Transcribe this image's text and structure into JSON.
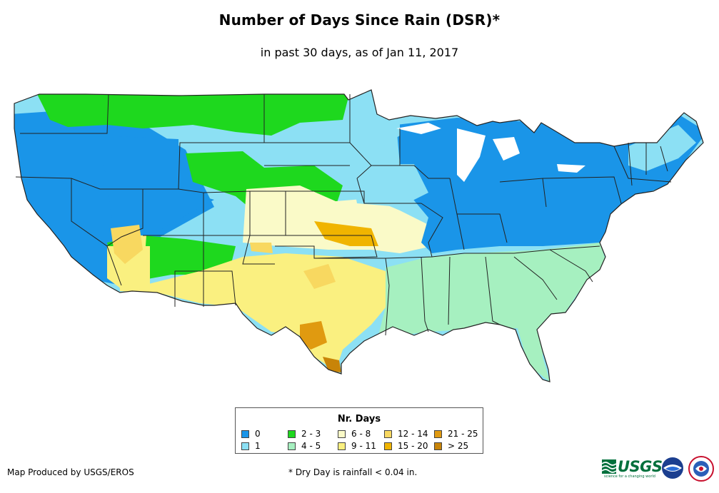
{
  "header": {
    "title": "Number of Days Since Rain (DSR)*",
    "subtitle": "in past 30 days, as of Jan 11, 2017"
  },
  "legend": {
    "title": "Nr. Days",
    "items": [
      {
        "label": "0",
        "color": "#1a95e8"
      },
      {
        "label": "1",
        "color": "#8ce0f4"
      },
      {
        "label": "2 - 3",
        "color": "#1ed81e"
      },
      {
        "label": "4 - 5",
        "color": "#a6f0c0"
      },
      {
        "label": "6 - 8",
        "color": "#fafac8"
      },
      {
        "label": "9 - 11",
        "color": "#faf080"
      },
      {
        "label": "12 - 14",
        "color": "#f8d860"
      },
      {
        "label": "15 - 20",
        "color": "#f0b400"
      },
      {
        "label": "21 - 25",
        "color": "#e09a10"
      },
      {
        "label": "> 25",
        "color": "#c88408"
      }
    ]
  },
  "footer": {
    "producer": "Map Produced by USGS/EROS",
    "note": "* Dry Day is rainfall < 0.04 in."
  },
  "logos": {
    "usgs": "USGS",
    "usgs_tagline": "science for a changing world",
    "noaa": "noaa",
    "nws": "National Weather Service"
  },
  "map": {
    "region": "Contiguous United States",
    "state_borders": true,
    "zones": [
      {
        "name": "northeast-and-great-lakes",
        "days": "0"
      },
      {
        "name": "pacific-west",
        "days": "0"
      },
      {
        "name": "northern-plains",
        "days": "1"
      },
      {
        "name": "northern-rockies",
        "days": "2 - 3"
      },
      {
        "name": "four-corners",
        "days": "2 - 3"
      },
      {
        "name": "southeast",
        "days": "4 - 5"
      },
      {
        "name": "central-plains",
        "days": "6 - 8"
      },
      {
        "name": "southwest-and-texas",
        "days": "9 - 11"
      },
      {
        "name": "kansas-oklahoma",
        "days": "12 - 14"
      },
      {
        "name": "texas-hill-country",
        "days": "15 - 20"
      },
      {
        "name": "south-texas",
        "days": "21 - 25"
      }
    ]
  }
}
